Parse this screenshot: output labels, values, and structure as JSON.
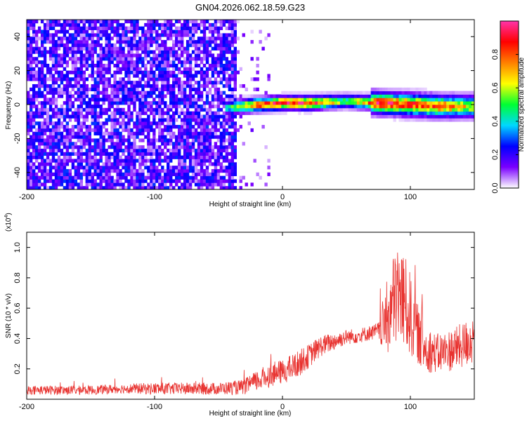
{
  "chart_data": [
    {
      "type": "heatmap",
      "title": "GN04.2026.062.18.59.G23",
      "xlabel": "Height of straight line (km)",
      "ylabel": "Frequency (Hz)",
      "xlim": [
        -200,
        150
      ],
      "ylim": [
        -50,
        50
      ],
      "xticks": [
        "-200",
        "-100",
        "0",
        "100"
      ],
      "xtick_values": [
        -200,
        -100,
        0,
        100
      ],
      "yticks": [
        "-40",
        "-20",
        "0",
        "20",
        "40"
      ],
      "ytick_values": [
        -40,
        -20,
        0,
        20,
        40
      ],
      "colorbar": {
        "label": "Normalized spectral amplitude",
        "range": [
          0,
          1
        ],
        "ticks": [
          "0.0",
          "0.2",
          "0.4",
          "0.6",
          "0.8"
        ],
        "tick_values": [
          0.0,
          0.2,
          0.4,
          0.6,
          0.8
        ],
        "colormap": [
          "#ffffff",
          "#7a00ff",
          "#0000ff",
          "#00d8ff",
          "#00ff33",
          "#ffff00",
          "#ff8000",
          "#ff0000",
          "#ff33aa"
        ]
      },
      "noise_region": {
        "x_range": [
          -200,
          -35
        ],
        "freq_range": [
          -50,
          50
        ],
        "typical_amplitude": 0.15
      },
      "signal_ridge": [
        {
          "x": -45,
          "freq": -2,
          "amplitude": 0.4
        },
        {
          "x": -20,
          "freq": 0,
          "amplitude": 0.85
        },
        {
          "x": 0,
          "freq": 1,
          "amplitude": 0.9
        },
        {
          "x": 20,
          "freq": 1,
          "amplitude": 0.95
        },
        {
          "x": 50,
          "freq": 2,
          "amplitude": 0.5
        },
        {
          "x": 75,
          "freq": 1,
          "amplitude": 0.9
        },
        {
          "x": 100,
          "freq": 0,
          "amplitude": 0.85
        },
        {
          "x": 125,
          "freq": -1,
          "amplitude": 0.8
        },
        {
          "x": 150,
          "freq": -1,
          "amplitude": 0.6
        }
      ],
      "grid": false
    },
    {
      "type": "line",
      "xlabel": "Height of straight line (km)",
      "ylabel": "SNR (10 * v/v)",
      "yscale_label": "(x10",
      "yscale_exponent": "4",
      "yscale_suffix": ")",
      "xlim": [
        -200,
        150
      ],
      "ylim": [
        0,
        1.1
      ],
      "xticks": [
        "-200",
        "-100",
        "0",
        "100"
      ],
      "xtick_values": [
        -200,
        -100,
        0,
        100
      ],
      "yticks": [
        "0.2",
        "0.4",
        "0.6",
        "0.8",
        "1.0"
      ],
      "ytick_values": [
        0.2,
        0.4,
        0.6,
        0.8,
        1.0
      ],
      "color": "#e8322f",
      "series": [
        {
          "x": [
            -200,
            -175,
            -150,
            -125,
            -100,
            -75,
            -50,
            -30,
            -20,
            -10,
            0,
            10,
            20,
            30,
            40,
            50,
            60,
            70,
            75,
            80,
            85,
            90,
            95,
            100,
            105,
            110,
            120,
            130,
            140,
            150
          ],
          "values": [
            0.06,
            0.06,
            0.06,
            0.07,
            0.07,
            0.07,
            0.07,
            0.08,
            0.12,
            0.16,
            0.18,
            0.22,
            0.28,
            0.35,
            0.38,
            0.41,
            0.42,
            0.44,
            0.45,
            0.5,
            0.6,
            0.7,
            0.65,
            0.55,
            0.45,
            0.35,
            0.3,
            0.32,
            0.35,
            0.4
          ],
          "spread": [
            0.03,
            0.03,
            0.03,
            0.03,
            0.04,
            0.04,
            0.04,
            0.05,
            0.07,
            0.08,
            0.08,
            0.09,
            0.08,
            0.07,
            0.06,
            0.05,
            0.05,
            0.05,
            0.06,
            0.22,
            0.3,
            0.35,
            0.32,
            0.28,
            0.2,
            0.17,
            0.13,
            0.14,
            0.15,
            0.17
          ]
        }
      ],
      "grid": false
    }
  ]
}
